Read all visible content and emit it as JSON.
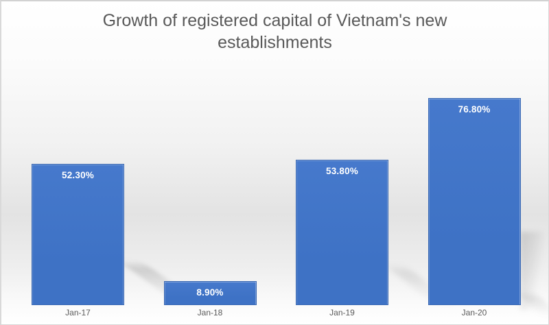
{
  "chart_data": {
    "type": "bar",
    "title": "Growth of registered capital of Vietnam's new establishments",
    "categories": [
      "Jan-17",
      "Jan-18",
      "Jan-19",
      "Jan-20"
    ],
    "values": [
      52.3,
      8.9,
      53.8,
      76.8
    ],
    "data_labels": [
      "52.30%",
      "8.90%",
      "53.80%",
      "76.80%"
    ],
    "xlabel": "",
    "ylabel": "",
    "ylim": [
      0,
      80
    ],
    "grid": false,
    "legend": false,
    "axis_line": false,
    "data_label_position": "inside-end",
    "colors": {
      "bar_fill": "#3E72C5",
      "bar_fill_top": "#4679CC",
      "data_label": "#FFFFFF",
      "title": "#595959",
      "axis_label": "#595959"
    }
  }
}
